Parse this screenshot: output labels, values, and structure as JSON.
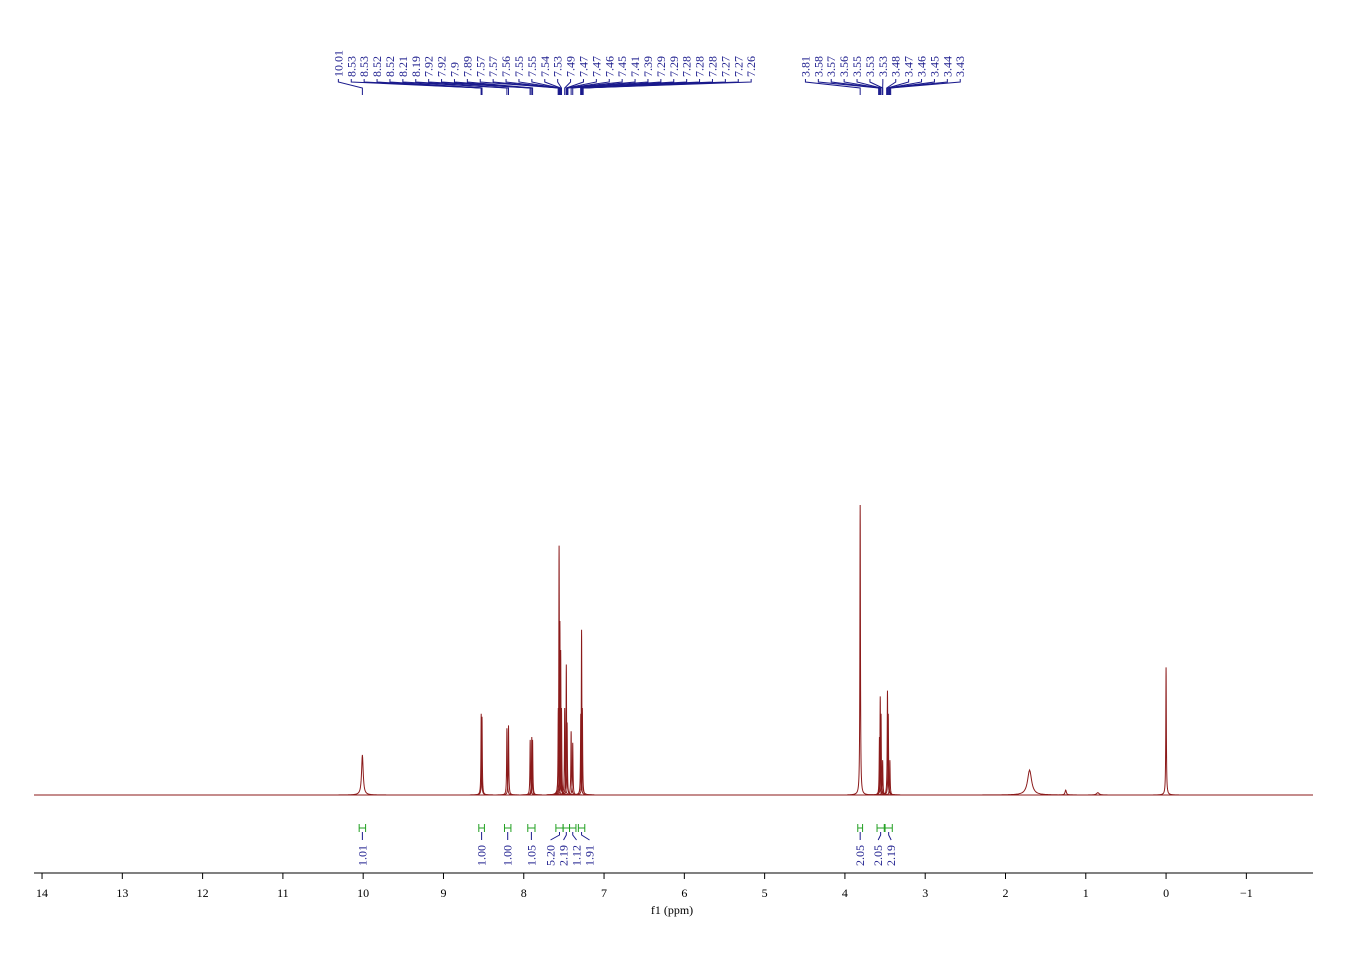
{
  "chart_data": {
    "type": "nmr",
    "x_label": "f1 (ppm)",
    "xlim": [
      14.1,
      -1.83
    ],
    "xticks": [
      14,
      13,
      12,
      11,
      10,
      9,
      8,
      7,
      6,
      5,
      4,
      3,
      2,
      1,
      0,
      {
        "value": -1,
        "label": "−1"
      }
    ],
    "ylim": [
      0,
      100
    ],
    "color": "#8b1a1a",
    "label_color": "#1a1a8c",
    "integral_color": "#22a022",
    "peaks": [
      {
        "ppm": 10.01,
        "height": 13.8,
        "width": 0.012
      },
      {
        "ppm": 8.53,
        "height": 28,
        "width": 0.004
      },
      {
        "ppm": 8.52,
        "height": 27,
        "width": 0.004
      },
      {
        "ppm": 8.21,
        "height": 23,
        "width": 0.004
      },
      {
        "ppm": 8.19,
        "height": 24,
        "width": 0.004
      },
      {
        "ppm": 7.92,
        "height": 19,
        "width": 0.004
      },
      {
        "ppm": 7.9,
        "height": 20,
        "width": 0.004
      },
      {
        "ppm": 7.89,
        "height": 19,
        "width": 0.004
      },
      {
        "ppm": 7.57,
        "height": 30,
        "width": 0.004
      },
      {
        "ppm": 7.56,
        "height": 86,
        "width": 0.004
      },
      {
        "ppm": 7.55,
        "height": 60,
        "width": 0.004
      },
      {
        "ppm": 7.54,
        "height": 50,
        "width": 0.004
      },
      {
        "ppm": 7.53,
        "height": 30,
        "width": 0.004
      },
      {
        "ppm": 7.49,
        "height": 30,
        "width": 0.004
      },
      {
        "ppm": 7.47,
        "height": 45,
        "width": 0.004
      },
      {
        "ppm": 7.46,
        "height": 25,
        "width": 0.004
      },
      {
        "ppm": 7.41,
        "height": 22,
        "width": 0.004
      },
      {
        "ppm": 7.39,
        "height": 18,
        "width": 0.004
      },
      {
        "ppm": 7.29,
        "height": 28,
        "width": 0.004
      },
      {
        "ppm": 7.28,
        "height": 57,
        "width": 0.004
      },
      {
        "ppm": 7.27,
        "height": 30,
        "width": 0.004
      },
      {
        "ppm": 3.81,
        "height": 100,
        "width": 0.004
      },
      {
        "ppm": 3.57,
        "height": 20,
        "width": 0.004
      },
      {
        "ppm": 3.56,
        "height": 34,
        "width": 0.004
      },
      {
        "ppm": 3.55,
        "height": 28,
        "width": 0.004
      },
      {
        "ppm": 3.53,
        "height": 12,
        "width": 0.004
      },
      {
        "ppm": 3.47,
        "height": 36,
        "width": 0.004
      },
      {
        "ppm": 3.46,
        "height": 28,
        "width": 0.004
      },
      {
        "ppm": 3.44,
        "height": 12,
        "width": 0.004
      },
      {
        "ppm": 1.7,
        "height": 8.6,
        "width": 0.03
      },
      {
        "ppm": 1.25,
        "height": 1.7,
        "width": 0.01
      },
      {
        "ppm": 0.85,
        "height": 0.8,
        "width": 0.02
      },
      {
        "ppm": 0.0,
        "height": 44,
        "width": 0.004
      }
    ],
    "peak_labels": [
      10.01,
      8.53,
      8.53,
      8.52,
      8.52,
      8.21,
      8.19,
      7.92,
      7.92,
      7.9,
      7.89,
      7.57,
      7.57,
      7.56,
      7.55,
      7.55,
      7.54,
      7.53,
      7.49,
      7.47,
      7.47,
      7.46,
      7.45,
      7.41,
      7.39,
      7.29,
      7.29,
      7.28,
      7.28,
      7.28,
      7.27,
      7.27,
      7.26,
      3.81,
      3.58,
      3.57,
      3.56,
      3.55,
      3.53,
      3.53,
      3.48,
      3.47,
      3.46,
      3.45,
      3.44,
      3.43
    ],
    "integrals": [
      {
        "from": 10.05,
        "to": 9.97,
        "value": 1.01,
        "label": "1.01"
      },
      {
        "from": 8.56,
        "to": 8.49,
        "value": 1,
        "label": "1.00"
      },
      {
        "from": 8.24,
        "to": 8.16,
        "value": 1,
        "label": "1.00"
      },
      {
        "from": 7.95,
        "to": 7.86,
        "value": 1.05,
        "label": "1.05"
      },
      {
        "from": 7.6,
        "to": 7.51,
        "value": 5.2,
        "label": "5.20"
      },
      {
        "from": 7.51,
        "to": 7.43,
        "value": 2.19,
        "label": "2.19"
      },
      {
        "from": 7.43,
        "to": 7.35,
        "value": 1.12,
        "label": "1.12"
      },
      {
        "from": 7.32,
        "to": 7.24,
        "value": 1.91,
        "label": "1.91"
      },
      {
        "from": 3.84,
        "to": 3.78,
        "value": 2.05,
        "label": "2.05"
      },
      {
        "from": 3.6,
        "to": 3.51,
        "value": 2.05,
        "label": "2.05"
      },
      {
        "from": 3.5,
        "to": 3.41,
        "value": 2.19,
        "label": "2.19"
      }
    ]
  }
}
